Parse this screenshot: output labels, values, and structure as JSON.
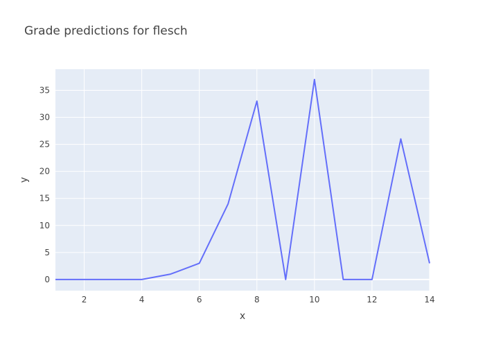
{
  "chart_data": {
    "type": "line",
    "title": "Grade predictions for flesch",
    "xlabel": "x",
    "ylabel": "y",
    "x": [
      1,
      2,
      3,
      4,
      5,
      6,
      7,
      8,
      9,
      10,
      11,
      12,
      13,
      14
    ],
    "series": [
      {
        "values": [
          0,
          0,
          0,
          0,
          1,
          3,
          14,
          33,
          0,
          37,
          0,
          0,
          26,
          3
        ],
        "color": "#636efa"
      }
    ],
    "xlim": [
      1,
      14
    ],
    "ylim": [
      -2.06,
      38.9
    ],
    "xticks": [
      2,
      4,
      6,
      8,
      10,
      12,
      14
    ],
    "yticks": [
      0,
      5,
      10,
      15,
      20,
      25,
      30,
      35
    ],
    "grid": true,
    "legend": "none",
    "colors": {
      "plot_background": "#e5ecf6",
      "grid": "#ffffff",
      "line": "#636efa",
      "text": "#444444"
    }
  }
}
